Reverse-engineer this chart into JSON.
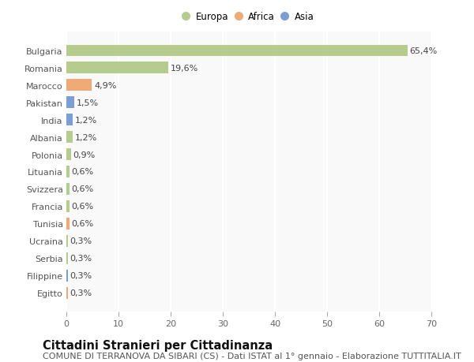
{
  "categories": [
    "Bulgaria",
    "Romania",
    "Marocco",
    "Pakistan",
    "India",
    "Albania",
    "Polonia",
    "Lituania",
    "Svizzera",
    "Francia",
    "Tunisia",
    "Ucraina",
    "Serbia",
    "Filippine",
    "Egitto"
  ],
  "values": [
    65.4,
    19.6,
    4.9,
    1.5,
    1.2,
    1.2,
    0.9,
    0.6,
    0.6,
    0.6,
    0.6,
    0.3,
    0.3,
    0.3,
    0.3
  ],
  "labels": [
    "65,4%",
    "19,6%",
    "4,9%",
    "1,5%",
    "1,2%",
    "1,2%",
    "0,9%",
    "0,6%",
    "0,6%",
    "0,6%",
    "0,6%",
    "0,3%",
    "0,3%",
    "0,3%",
    "0,3%"
  ],
  "continents": [
    "Europa",
    "Europa",
    "Africa",
    "Asia",
    "Asia",
    "Europa",
    "Europa",
    "Europa",
    "Europa",
    "Europa",
    "Africa",
    "Europa",
    "Europa",
    "Asia",
    "Africa"
  ],
  "colors": {
    "Europa": "#b5cc8e",
    "Africa": "#f0aa78",
    "Asia": "#7b9fd4"
  },
  "xlim": [
    0,
    70
  ],
  "xticks": [
    0,
    10,
    20,
    30,
    40,
    50,
    60,
    70
  ],
  "background_color": "#ffffff",
  "plot_bg_color": "#f9f9f9",
  "grid_color": "#ffffff",
  "title": "Cittadini Stranieri per Cittadinanza",
  "subtitle": "COMUNE DI TERRANOVA DA SIBARI (CS) - Dati ISTAT al 1° gennaio - Elaborazione TUTTITALIA.IT",
  "title_fontsize": 10.5,
  "subtitle_fontsize": 8,
  "label_fontsize": 8,
  "tick_fontsize": 8,
  "legend_fontsize": 8.5,
  "bar_height": 0.65
}
